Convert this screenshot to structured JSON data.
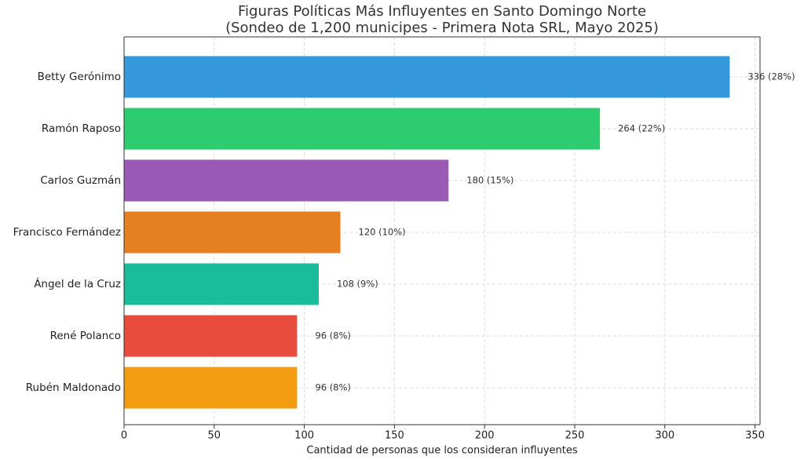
{
  "chart_data": {
    "type": "bar",
    "orientation": "horizontal",
    "title": "Figuras Políticas Más Influyentes en Santo Domingo Norte",
    "subtitle": "(Sondeo de 1,200 municipes - Primera Nota SRL, Mayo 2025)",
    "x_label": "Cantidad de personas que los consideran influyentes",
    "categories": [
      "Betty Gerónimo",
      "Ramón Raposo",
      "Carlos Guzmán",
      "Francisco Fernández",
      "Ángel de la Cruz",
      "René Polanco",
      "Rubén Maldonado"
    ],
    "values": [
      336,
      264,
      180,
      120,
      108,
      96,
      96
    ],
    "value_labels": [
      "336 (28%)",
      "264 (22%)",
      "180 (15%)",
      "120 (10%)",
      "108 (9%)",
      "96 (8%)",
      "96 (8%)"
    ],
    "colors": [
      "#3498db",
      "#2ecc71",
      "#9b59b6",
      "#e67e22",
      "#1abc9c",
      "#e74c3c",
      "#f39c12"
    ],
    "xlim": [
      0,
      352.8
    ],
    "xticks": [
      0,
      50,
      100,
      150,
      200,
      250,
      300,
      350
    ],
    "grid": true
  }
}
